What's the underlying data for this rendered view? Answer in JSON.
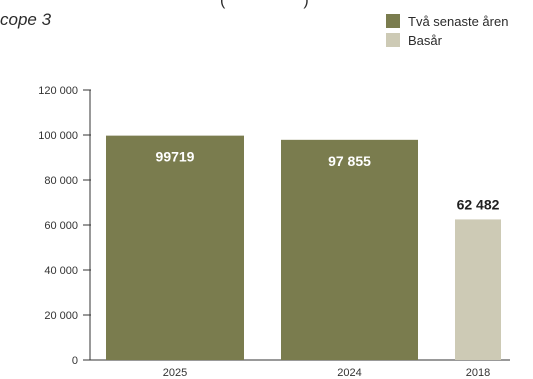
{
  "page": {
    "title_fragment": "cope 3",
    "top_fragment": "(",
    "top_fragment_right": ")"
  },
  "chart_data": {
    "type": "bar",
    "title": "",
    "xlabel": "",
    "ylabel": "",
    "categories": [
      "2025",
      "2024",
      "2018"
    ],
    "values": [
      99719,
      97855,
      62482
    ],
    "value_labels": [
      "99719",
      "97 855",
      "62 482"
    ],
    "series_by_bar": [
      "Två senaste åren",
      "Två senaste åren",
      "Basår"
    ],
    "ylim": [
      0,
      120000
    ],
    "yticks": [
      0,
      20000,
      40000,
      60000,
      80000,
      100000,
      120000
    ],
    "ytick_labels": [
      "0",
      "20 000",
      "40 000",
      "60 000",
      "80 000",
      "100 000",
      "120 000"
    ],
    "grid": false,
    "legend": {
      "placement": "top-right",
      "items": [
        {
          "label": "Två senaste åren",
          "color": "#7a7c4e"
        },
        {
          "label": "Basår",
          "color": "#cdcab5"
        }
      ]
    },
    "colors": {
      "recent": "#7a7c4e",
      "base": "#cdcab5",
      "axis": "#333333",
      "label_inside": "#ffffff",
      "label_outside": "#1f1f1f"
    }
  }
}
